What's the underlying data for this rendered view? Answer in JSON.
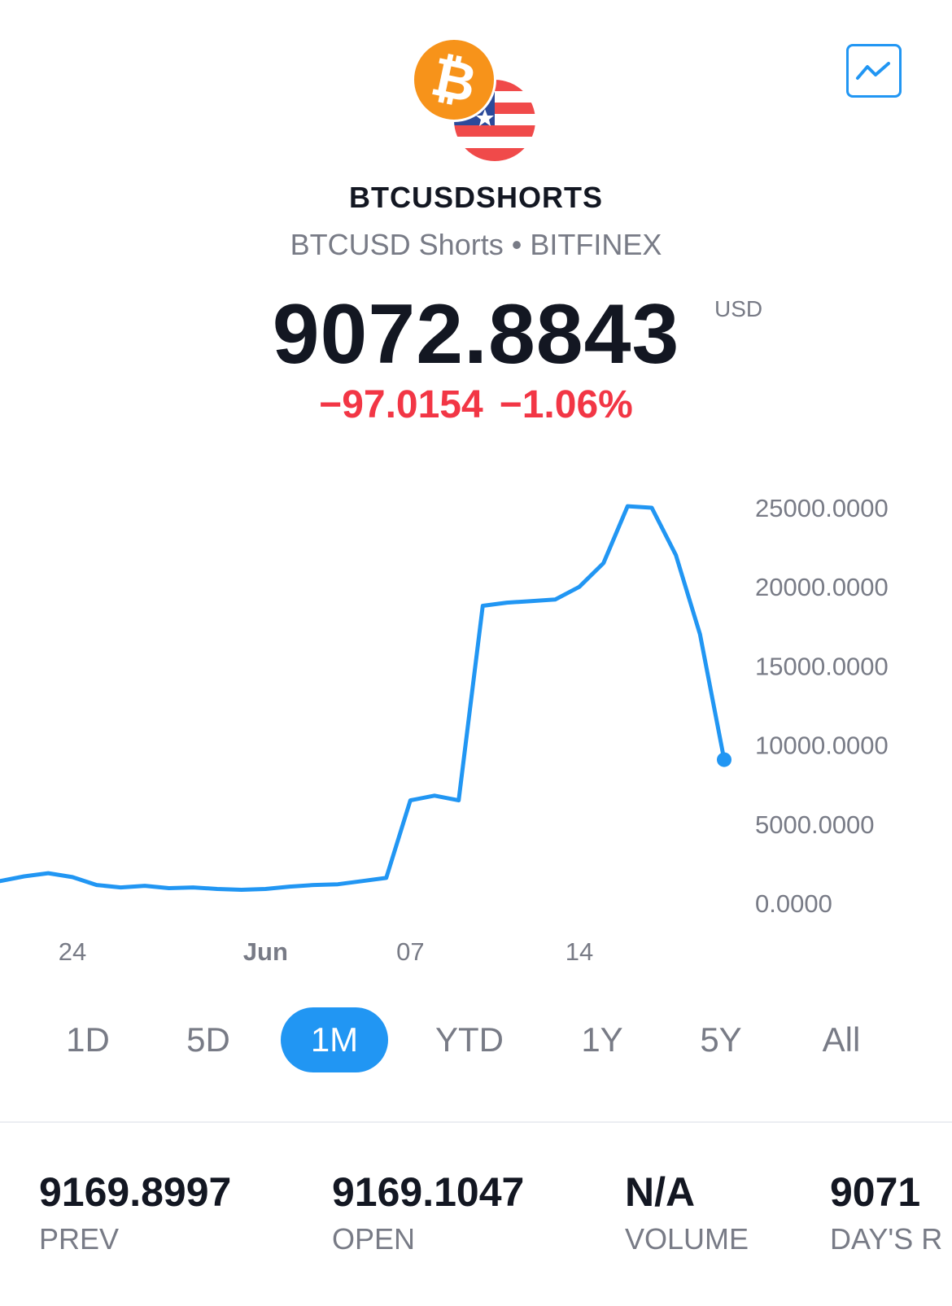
{
  "header": {
    "symbol": "BTCUSDSHORTS",
    "subtitle": "BTCUSD Shorts • BITFINEX",
    "price": "9072.8843",
    "currency": "USD",
    "change": "−97.0154",
    "change_percent": "−1.06%",
    "change_color": "#f23645",
    "chart_button_icon": "line-chart-icon",
    "coin_icon": "bitcoin-icon",
    "flag_icon": "us-flag-icon",
    "coin_glyph": "₿"
  },
  "chart_data": {
    "type": "line",
    "title": "",
    "xlabel": "",
    "ylabel": "",
    "color": "#2196f3",
    "ylim": [
      0,
      25000
    ],
    "yticks": [
      "25000.0000",
      "20000.0000",
      "15000.0000",
      "10000.0000",
      "5000.0000",
      "0.0000"
    ],
    "xticks": [
      {
        "label": "24",
        "x": "05-24",
        "bold": false
      },
      {
        "label": "Jun",
        "x": "06-01",
        "bold": true
      },
      {
        "label": "07",
        "x": "06-07",
        "bold": false
      },
      {
        "label": "14",
        "x": "06-14",
        "bold": false
      }
    ],
    "x": [
      "05-21",
      "05-22",
      "05-23",
      "05-24",
      "05-25",
      "05-26",
      "05-27",
      "05-28",
      "05-29",
      "05-30",
      "05-31",
      "06-01",
      "06-02",
      "06-03",
      "06-04",
      "06-05",
      "06-06",
      "06-07",
      "06-08",
      "06-09",
      "06-10",
      "06-11",
      "06-12",
      "06-13",
      "06-14",
      "06-15",
      "06-16",
      "06-17",
      "06-18",
      "06-19",
      "06-20"
    ],
    "values": [
      1400,
      1700,
      1900,
      1650,
      1150,
      1000,
      1100,
      950,
      1000,
      900,
      850,
      900,
      1050,
      1150,
      1200,
      1400,
      1600,
      6500,
      6800,
      6500,
      18800,
      19000,
      19100,
      19200,
      20000,
      21500,
      25100,
      25000,
      22000,
      17000,
      9073
    ]
  },
  "ranges": [
    {
      "label": "1D",
      "active": false
    },
    {
      "label": "5D",
      "active": false
    },
    {
      "label": "1M",
      "active": true
    },
    {
      "label": "YTD",
      "active": false
    },
    {
      "label": "1Y",
      "active": false
    },
    {
      "label": "5Y",
      "active": false
    },
    {
      "label": "All",
      "active": false
    }
  ],
  "stats": [
    {
      "value": "9169.8997",
      "label": "PREV"
    },
    {
      "value": "9169.1047",
      "label": "OPEN"
    },
    {
      "value": "N/A",
      "label": "VOLUME"
    },
    {
      "value": "9071",
      "label": "DAY'S R"
    }
  ]
}
